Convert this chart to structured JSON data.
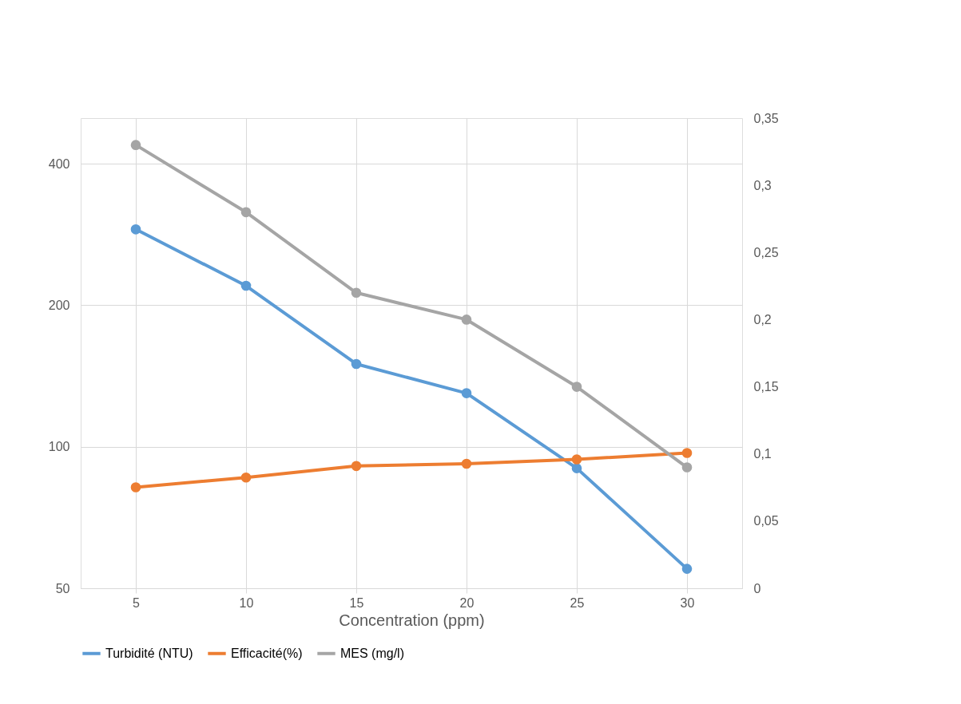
{
  "chart_data": {
    "type": "line",
    "xlabel": "Concentration (ppm)",
    "categories": [
      "5",
      "10",
      "15",
      "20",
      "25",
      "30"
    ],
    "series": [
      {
        "name": "Turbidité (NTU)",
        "color": "#5b9bd5",
        "values": [
          290,
          220,
          150,
          130,
          90,
          55
        ]
      },
      {
        "name": "Efficacité(%)",
        "color": "#ed7d31",
        "values": [
          82,
          86,
          91,
          92,
          94,
          97
        ]
      },
      {
        "name": "MES  (mg/l)",
        "color": "#a5a5a5",
        "values": [
          0.33,
          0.28,
          0.22,
          0.2,
          0.15,
          0.09
        ],
        "axis": "y2"
      }
    ],
    "ylim": [
      50,
      500
    ],
    "yticks": [
      50,
      100,
      200,
      400
    ],
    "log": true,
    "y2lim": [
      0,
      0.35
    ],
    "y2ticks": [
      0,
      {
        "value": 0.05,
        "label": "0,05"
      },
      {
        "value": 0.1,
        "label": "0,1"
      },
      {
        "value": 0.15,
        "label": "0,15"
      },
      {
        "value": 0.2,
        "label": "0,2"
      },
      {
        "value": 0.25,
        "label": "0,25"
      },
      {
        "value": 0.3,
        "label": "0,3"
      },
      {
        "value": 0.35,
        "label": "0,35"
      }
    ],
    "grid": true,
    "legend": "bottom",
    "marker": "circle",
    "line_style": "solid"
  }
}
